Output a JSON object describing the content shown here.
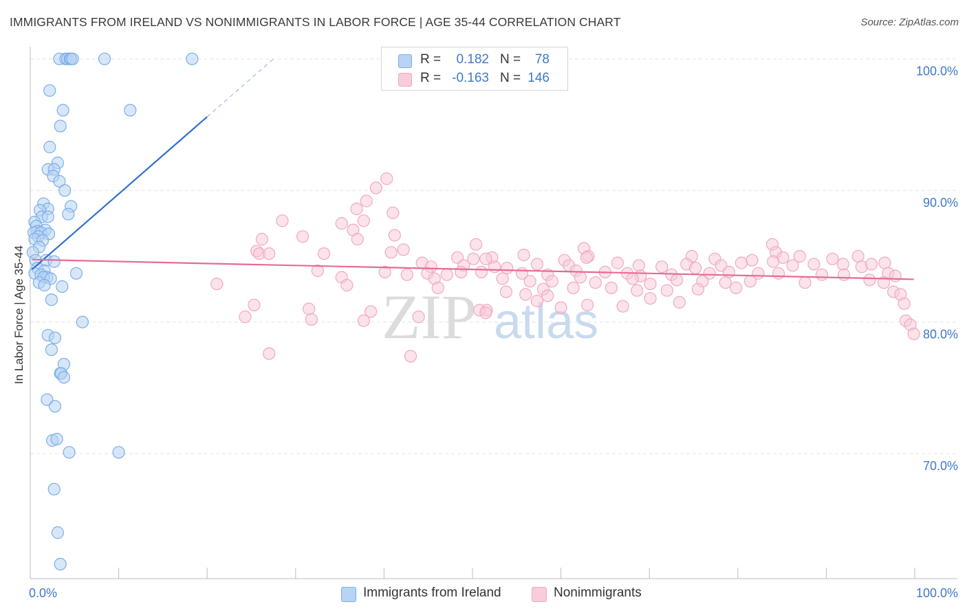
{
  "chart_data": {
    "type": "scatter",
    "title": "IMMIGRANTS FROM IRELAND VS NONIMMIGRANTS IN LABOR FORCE | AGE 35-44 CORRELATION CHART",
    "source": "Source: ZipAtlas.com",
    "ylabel": "In Labor Force | Age 35-44",
    "xlabel": "",
    "xlim": [
      0,
      100
    ],
    "ylim": [
      60.5,
      101.5
    ],
    "x_tick_labels": [
      "0.0%",
      "100.0%"
    ],
    "y_ticks": [
      {
        "value": 100,
        "label": "100.0%"
      },
      {
        "value": 90,
        "label": "90.0%"
      },
      {
        "value": 80,
        "label": "80.0%"
      },
      {
        "value": 70,
        "label": "70.0%"
      }
    ],
    "watermark": {
      "zip": "ZIP",
      "atlas": "atlas"
    },
    "legend": [
      {
        "r_label": "R =",
        "r_value": "0.182",
        "n_label": "N =",
        "n_value": "78"
      },
      {
        "r_label": "R =",
        "r_value": "-0.163",
        "n_label": "N =",
        "n_value": "146"
      }
    ],
    "series": [
      {
        "name": "Immigrants from Ireland",
        "color": "#7aaee8",
        "fill": "#b8d3f3",
        "trend": {
          "x0": 0.2,
          "y0": 84.0,
          "x1": 20.0,
          "y1": 95.6,
          "dash_x1": 27.5,
          "dash_y1": 100.0
        },
        "points": [
          [
            3.3,
            100
          ],
          [
            4.0,
            100
          ],
          [
            4.2,
            100
          ],
          [
            4.5,
            100
          ],
          [
            4.6,
            100
          ],
          [
            4.8,
            100
          ],
          [
            8.4,
            100
          ],
          [
            18.3,
            100
          ],
          [
            2.2,
            97.6
          ],
          [
            3.7,
            96.1
          ],
          [
            11.3,
            96.1
          ],
          [
            3.4,
            94.9
          ],
          [
            2.2,
            93.3
          ],
          [
            3.1,
            92.1
          ],
          [
            2.0,
            91.6
          ],
          [
            2.7,
            91.6
          ],
          [
            2.6,
            91.1
          ],
          [
            3.3,
            90.7
          ],
          [
            3.9,
            90.0
          ],
          [
            1.5,
            89.0
          ],
          [
            4.6,
            88.8
          ],
          [
            2.0,
            88.6
          ],
          [
            1.1,
            88.5
          ],
          [
            4.3,
            88.2
          ],
          [
            1.3,
            88.0
          ],
          [
            2.0,
            88.0
          ],
          [
            0.5,
            87.6
          ],
          [
            0.7,
            87.3
          ],
          [
            1.7,
            87.0
          ],
          [
            0.8,
            86.9
          ],
          [
            0.4,
            86.8
          ],
          [
            1.2,
            86.8
          ],
          [
            2.1,
            86.7
          ],
          [
            0.9,
            86.5
          ],
          [
            0.5,
            86.3
          ],
          [
            1.4,
            86.2
          ],
          [
            1.0,
            85.7
          ],
          [
            0.3,
            85.3
          ],
          [
            0.6,
            84.7
          ],
          [
            1.8,
            84.7
          ],
          [
            2.7,
            84.6
          ],
          [
            0.8,
            84.1
          ],
          [
            1.6,
            83.9
          ],
          [
            0.5,
            83.7
          ],
          [
            1.2,
            83.6
          ],
          [
            1.9,
            83.4
          ],
          [
            5.2,
            83.7
          ],
          [
            1.5,
            83.4
          ],
          [
            2.3,
            83.3
          ],
          [
            1.0,
            83.0
          ],
          [
            1.6,
            82.8
          ],
          [
            3.6,
            82.7
          ],
          [
            2.4,
            81.7
          ],
          [
            5.9,
            80.0
          ],
          [
            2.0,
            79.0
          ],
          [
            2.8,
            78.8
          ],
          [
            2.4,
            77.9
          ],
          [
            3.8,
            76.8
          ],
          [
            3.4,
            76.1
          ],
          [
            3.5,
            76.1
          ],
          [
            3.8,
            75.8
          ],
          [
            1.9,
            74.1
          ],
          [
            2.8,
            73.6
          ],
          [
            2.5,
            71.0
          ],
          [
            3.0,
            71.1
          ],
          [
            4.4,
            70.1
          ],
          [
            10.0,
            70.1
          ],
          [
            2.7,
            67.3
          ],
          [
            3.1,
            64.0
          ],
          [
            3.4,
            61.6
          ]
        ]
      },
      {
        "name": "Nonimmigrants",
        "color": "#f0a8c0",
        "fill": "#f8ccdb",
        "trend": {
          "x0": 0.2,
          "y0": 84.75,
          "x1": 99.9,
          "y1": 83.25
        },
        "points": [
          [
            40.3,
            90.9
          ],
          [
            39.1,
            90.2
          ],
          [
            38.0,
            89.2
          ],
          [
            41.0,
            88.3
          ],
          [
            36.9,
            88.6
          ],
          [
            28.5,
            87.7
          ],
          [
            35.2,
            87.5
          ],
          [
            37.7,
            87.7
          ],
          [
            36.5,
            87.0
          ],
          [
            41.2,
            86.6
          ],
          [
            30.8,
            86.5
          ],
          [
            37.0,
            86.3
          ],
          [
            26.2,
            86.3
          ],
          [
            50.4,
            85.9
          ],
          [
            42.2,
            85.5
          ],
          [
            25.6,
            85.4
          ],
          [
            40.8,
            85.3
          ],
          [
            33.2,
            85.2
          ],
          [
            25.9,
            85.2
          ],
          [
            27.0,
            85.2
          ],
          [
            62.6,
            85.6
          ],
          [
            83.9,
            85.9
          ],
          [
            84.3,
            85.3
          ],
          [
            55.8,
            85.1
          ],
          [
            63.1,
            85.0
          ],
          [
            52.2,
            84.9
          ],
          [
            50.1,
            84.8
          ],
          [
            51.5,
            84.8
          ],
          [
            48.3,
            84.9
          ],
          [
            60.4,
            84.7
          ],
          [
            62.9,
            84.9
          ],
          [
            74.8,
            85.0
          ],
          [
            77.4,
            84.8
          ],
          [
            81.6,
            84.7
          ],
          [
            85.1,
            84.9
          ],
          [
            87.0,
            85.0
          ],
          [
            93.6,
            85.0
          ],
          [
            90.7,
            84.8
          ],
          [
            96.6,
            84.5
          ],
          [
            44.3,
            84.5
          ],
          [
            45.3,
            84.2
          ],
          [
            49.0,
            84.3
          ],
          [
            52.5,
            84.2
          ],
          [
            57.3,
            84.4
          ],
          [
            60.9,
            84.3
          ],
          [
            66.4,
            84.5
          ],
          [
            68.8,
            84.3
          ],
          [
            71.4,
            84.2
          ],
          [
            74.2,
            84.4
          ],
          [
            78.1,
            84.3
          ],
          [
            80.4,
            84.5
          ],
          [
            84.0,
            84.6
          ],
          [
            86.2,
            84.3
          ],
          [
            88.6,
            84.4
          ],
          [
            91.9,
            84.4
          ],
          [
            94.0,
            84.2
          ],
          [
            95.1,
            84.4
          ],
          [
            32.5,
            83.9
          ],
          [
            40.1,
            83.8
          ],
          [
            42.6,
            83.6
          ],
          [
            44.9,
            83.7
          ],
          [
            47.1,
            83.6
          ],
          [
            48.7,
            83.8
          ],
          [
            51.0,
            83.8
          ],
          [
            53.9,
            84.1
          ],
          [
            55.6,
            83.7
          ],
          [
            58.5,
            83.6
          ],
          [
            61.7,
            83.9
          ],
          [
            65.0,
            83.8
          ],
          [
            67.5,
            83.7
          ],
          [
            69.0,
            83.5
          ],
          [
            72.5,
            83.6
          ],
          [
            75.2,
            84.1
          ],
          [
            76.8,
            83.7
          ],
          [
            79.0,
            83.8
          ],
          [
            82.3,
            83.7
          ],
          [
            84.6,
            83.7
          ],
          [
            89.5,
            83.6
          ],
          [
            92.0,
            83.6
          ],
          [
            97.0,
            83.7
          ],
          [
            97.8,
            83.5
          ],
          [
            35.2,
            83.4
          ],
          [
            45.7,
            83.3
          ],
          [
            53.4,
            83.3
          ],
          [
            56.5,
            83.1
          ],
          [
            59.0,
            83.1
          ],
          [
            62.2,
            83.4
          ],
          [
            63.9,
            83.0
          ],
          [
            68.1,
            83.3
          ],
          [
            70.1,
            82.9
          ],
          [
            73.1,
            83.2
          ],
          [
            76.0,
            83.1
          ],
          [
            78.6,
            83.0
          ],
          [
            81.4,
            83.1
          ],
          [
            87.6,
            83.0
          ],
          [
            94.9,
            83.2
          ],
          [
            96.5,
            83.0
          ],
          [
            21.1,
            82.9
          ],
          [
            35.8,
            82.8
          ],
          [
            46.1,
            82.6
          ],
          [
            53.8,
            82.3
          ],
          [
            56.0,
            82.1
          ],
          [
            58.0,
            82.5
          ],
          [
            61.4,
            82.6
          ],
          [
            65.7,
            82.6
          ],
          [
            68.6,
            82.4
          ],
          [
            72.0,
            82.4
          ],
          [
            75.5,
            82.5
          ],
          [
            79.8,
            82.6
          ],
          [
            97.6,
            82.3
          ],
          [
            98.4,
            82.1
          ],
          [
            58.5,
            82.0
          ],
          [
            70.1,
            81.8
          ],
          [
            73.4,
            81.5
          ],
          [
            63.0,
            81.3
          ],
          [
            57.3,
            81.6
          ],
          [
            98.8,
            81.4
          ],
          [
            25.3,
            81.3
          ],
          [
            31.5,
            81.0
          ],
          [
            38.5,
            80.8
          ],
          [
            60.0,
            81.1
          ],
          [
            51.6,
            80.9
          ],
          [
            50.8,
            80.9
          ],
          [
            67.0,
            81.2
          ],
          [
            24.3,
            80.4
          ],
          [
            31.8,
            80.2
          ],
          [
            43.9,
            80.4
          ],
          [
            51.5,
            80.7
          ],
          [
            37.7,
            80.1
          ],
          [
            99.0,
            80.1
          ],
          [
            99.5,
            79.8
          ],
          [
            99.9,
            79.1
          ],
          [
            27.0,
            77.6
          ],
          [
            43.0,
            77.4
          ]
        ]
      }
    ]
  }
}
